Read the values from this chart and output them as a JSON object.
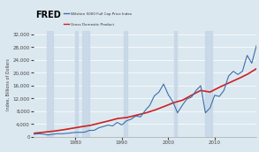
{
  "fred_logo": "FRED",
  "legend": [
    "Wilshire 5000 Full Cap Price Index",
    "Gross Domestic Product"
  ],
  "line_colors": [
    "#3b6faa",
    "#cc2222"
  ],
  "header_bg": "#f0f0f0",
  "plot_bg_color": "#dce8f0",
  "fig_bg_color": "#dce8f0",
  "ylabel": "Index, Billions of Dollars",
  "xlim_start": 1971,
  "xlim_end": 2019,
  "ylim": [
    0,
    33000
  ],
  "yticks": [
    0,
    4000,
    8000,
    12000,
    16000,
    20000,
    24000,
    28000,
    32000
  ],
  "xticks": [
    1980,
    1990,
    2000,
    2010
  ],
  "recession_bands": [
    [
      1973.75,
      1975.17
    ],
    [
      1980.0,
      1980.5
    ],
    [
      1981.5,
      1982.92
    ],
    [
      1990.5,
      1991.25
    ],
    [
      2001.25,
      2001.92
    ],
    [
      2007.92,
      2009.5
    ]
  ],
  "wilshire_years": [
    1971,
    1972,
    1973,
    1974,
    1975,
    1976,
    1977,
    1978,
    1979,
    1980,
    1981,
    1982,
    1983,
    1984,
    1985,
    1986,
    1987,
    1988,
    1989,
    1990,
    1991,
    1992,
    1993,
    1994,
    1995,
    1996,
    1997,
    1998,
    1999,
    2000,
    2001,
    2002,
    2003,
    2004,
    2005,
    2006,
    2007,
    2008,
    2009,
    2010,
    2011,
    2012,
    2013,
    2014,
    2015,
    2016,
    2017,
    2018,
    2019
  ],
  "wilshire_values": [
    800,
    950,
    870,
    580,
    750,
    980,
    940,
    1050,
    1200,
    1400,
    1380,
    1450,
    2000,
    2000,
    2800,
    3200,
    3700,
    3400,
    4500,
    3700,
    5000,
    5500,
    6500,
    6200,
    8200,
    9800,
    12800,
    14000,
    16500,
    13200,
    11000,
    7500,
    9800,
    11800,
    12400,
    14500,
    16000,
    7500,
    9000,
    13000,
    12600,
    14500,
    19000,
    20500,
    19500,
    20500,
    25500,
    23000,
    28500
  ],
  "gdp_years": [
    1971,
    1973,
    1975,
    1977,
    1979,
    1981,
    1983,
    1985,
    1987,
    1989,
    1991,
    1993,
    1995,
    1997,
    1999,
    2001,
    2003,
    2005,
    2007,
    2009,
    2011,
    2013,
    2015,
    2017,
    2019
  ],
  "gdp_values": [
    1100,
    1400,
    1700,
    2100,
    2600,
    3100,
    3500,
    4200,
    4900,
    5700,
    6000,
    6700,
    7400,
    8300,
    9400,
    10600,
    11400,
    13000,
    14500,
    14000,
    15500,
    16800,
    18100,
    19500,
    21300
  ]
}
